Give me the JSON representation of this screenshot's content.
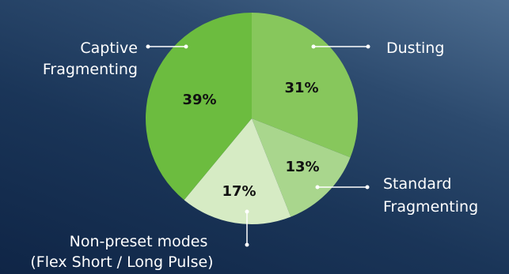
{
  "chart_data": {
    "type": "pie",
    "slices": [
      {
        "label": "Dusting",
        "value": 31,
        "display": "31%",
        "color": "#87c75c"
      },
      {
        "label": "Standard Fragmenting",
        "label_lines": [
          "Standard",
          "Fragmenting"
        ],
        "value": 13,
        "display": "13%",
        "color": "#a9d68d"
      },
      {
        "label": "Non-preset modes (Flex Short / Long Pulse)",
        "label_lines": [
          "Non-preset modes",
          "(Flex Short / Long Pulse)"
        ],
        "value": 17,
        "display": "17%",
        "color": "#d6ebc4"
      },
      {
        "label": "Captive Fragmenting",
        "label_lines": [
          "Captive",
          "Fragmenting"
        ],
        "value": 39,
        "display": "39%",
        "color": "#6cbc3f"
      }
    ],
    "start_angle_deg": 0,
    "direction": "clockwise"
  }
}
